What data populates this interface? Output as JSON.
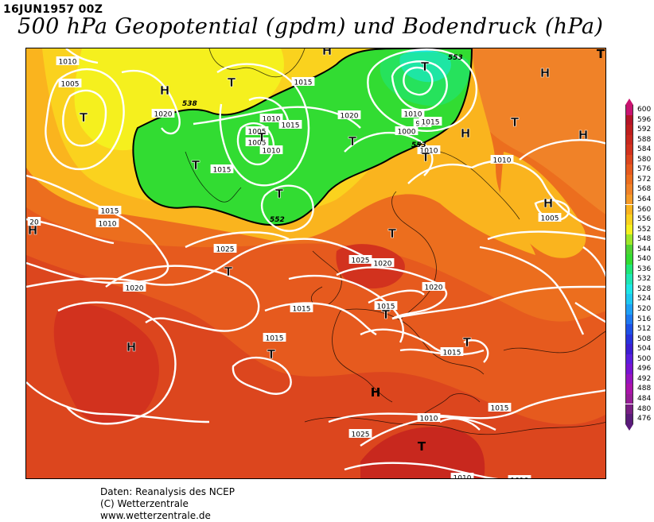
{
  "header": {
    "date_label": "16JUN1957 00Z",
    "title": "500 hPa Geopotential (gpdm) und Bodendruck (hPa)"
  },
  "credits": {
    "line1": "Daten: Reanalysis des NCEP",
    "line2": "(C) Wetterzentrale",
    "line3": "www.wetterzentrale.de"
  },
  "legend": {
    "entries": [
      {
        "label": "600",
        "color": "#c81470"
      },
      {
        "label": "596",
        "color": "#b41428"
      },
      {
        "label": "592",
        "color": "#be1e1e"
      },
      {
        "label": "588",
        "color": "#c8281e"
      },
      {
        "label": "584",
        "color": "#d2321e"
      },
      {
        "label": "580",
        "color": "#dc461e"
      },
      {
        "label": "576",
        "color": "#e65a1e"
      },
      {
        "label": "572",
        "color": "#ec6e1e"
      },
      {
        "label": "568",
        "color": "#f08228"
      },
      {
        "label": "564",
        "color": "#f59b28"
      },
      {
        "label": "560",
        "color": "#fab41e"
      },
      {
        "label": "556",
        "color": "#fad21e"
      },
      {
        "label": "552",
        "color": "#f5f01e"
      },
      {
        "label": "548",
        "color": "#9ee628"
      },
      {
        "label": "544",
        "color": "#50d232"
      },
      {
        "label": "540",
        "color": "#32dc32"
      },
      {
        "label": "536",
        "color": "#1ee678"
      },
      {
        "label": "532",
        "color": "#1ee6b4"
      },
      {
        "label": "528",
        "color": "#1ee6e6"
      },
      {
        "label": "524",
        "color": "#1ec8f0"
      },
      {
        "label": "520",
        "color": "#1ea0f5"
      },
      {
        "label": "516",
        "color": "#1e78f0"
      },
      {
        "label": "512",
        "color": "#1e50e6"
      },
      {
        "label": "508",
        "color": "#2832dc"
      },
      {
        "label": "504",
        "color": "#3c1ed2"
      },
      {
        "label": "500",
        "color": "#5a1edc"
      },
      {
        "label": "496",
        "color": "#7814d2"
      },
      {
        "label": "492",
        "color": "#9614be"
      },
      {
        "label": "488",
        "color": "#aa14aa"
      },
      {
        "label": "484",
        "color": "#961e96"
      },
      {
        "label": "480",
        "color": "#781e82"
      },
      {
        "label": "476",
        "color": "#5a1b7a"
      }
    ]
  },
  "map": {
    "isobar_labels": [
      "1010",
      "1005",
      "1020",
      "1015",
      "1010",
      "1005",
      "1015",
      "1010",
      "1005",
      "1000",
      "995",
      "1020",
      "1015",
      "1010",
      "1015",
      "1010",
      "1005",
      "1010",
      "1015",
      "1020",
      "1025",
      "1025",
      "1020",
      "1020",
      "1015",
      "1015",
      "1025",
      "1015",
      "1015",
      "1010",
      "1010",
      "1010",
      "1015",
      "20",
      "1010"
    ],
    "pressure_centers": [
      "T",
      "H",
      "T",
      "H",
      "T",
      "T",
      "T",
      "T",
      "H",
      "H",
      "T",
      "H",
      "T",
      "T",
      "H",
      "H",
      "T",
      "T",
      "T",
      "H",
      "T",
      "T"
    ],
    "height_contour_labels": [
      "538",
      "553",
      "552",
      "553"
    ]
  }
}
